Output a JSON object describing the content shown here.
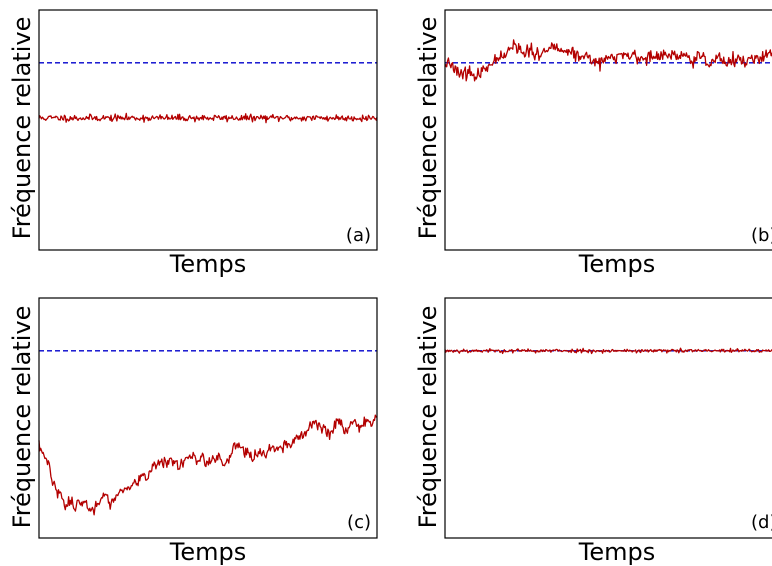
{
  "colors": {
    "series": "#b30000",
    "reference": "#0000cc",
    "frame": "#000000"
  },
  "chart_data": [
    {
      "type": "line",
      "panel_label": "(a)",
      "xlabel": "Temps",
      "ylabel": "Fréquence relative",
      "ylim": [
        0,
        1
      ],
      "grid": false,
      "ticks": false,
      "reference": {
        "y": 0.78,
        "style": "dashed"
      },
      "series": [
        {
          "pattern": "flat",
          "base": 0.55,
          "noise": 0.007,
          "seed": 11
        }
      ]
    },
    {
      "type": "line",
      "panel_label": "(b)",
      "xlabel": "Temps",
      "ylabel": "Fréquence relative",
      "ylim": [
        0,
        1
      ],
      "grid": false,
      "ticks": false,
      "reference": {
        "y": 0.78,
        "style": "dashed"
      },
      "series": [
        {
          "pattern": "wander",
          "base": 0.78,
          "noise": 0.012,
          "drift": 0.02,
          "seed": 23
        }
      ]
    },
    {
      "type": "line",
      "panel_label": "(c)",
      "xlabel": "Temps",
      "ylabel": "Fréquence relative",
      "ylim": [
        0,
        1
      ],
      "grid": false,
      "ticks": false,
      "reference": {
        "y": 0.78,
        "style": "dashed"
      },
      "series": [
        {
          "pattern": "dip_rise",
          "start": 0.4,
          "min": 0.13,
          "end": 0.52,
          "noise": 0.018,
          "seed": 37
        }
      ]
    },
    {
      "type": "line",
      "panel_label": "(d)",
      "xlabel": "Temps",
      "ylabel": "Fréquence relative",
      "ylim": [
        0,
        1
      ],
      "grid": false,
      "ticks": false,
      "reference": {
        "y": 0.78,
        "style": "dashed"
      },
      "series": [
        {
          "pattern": "flat",
          "base": 0.78,
          "noise": 0.004,
          "seed": 53
        }
      ]
    }
  ]
}
